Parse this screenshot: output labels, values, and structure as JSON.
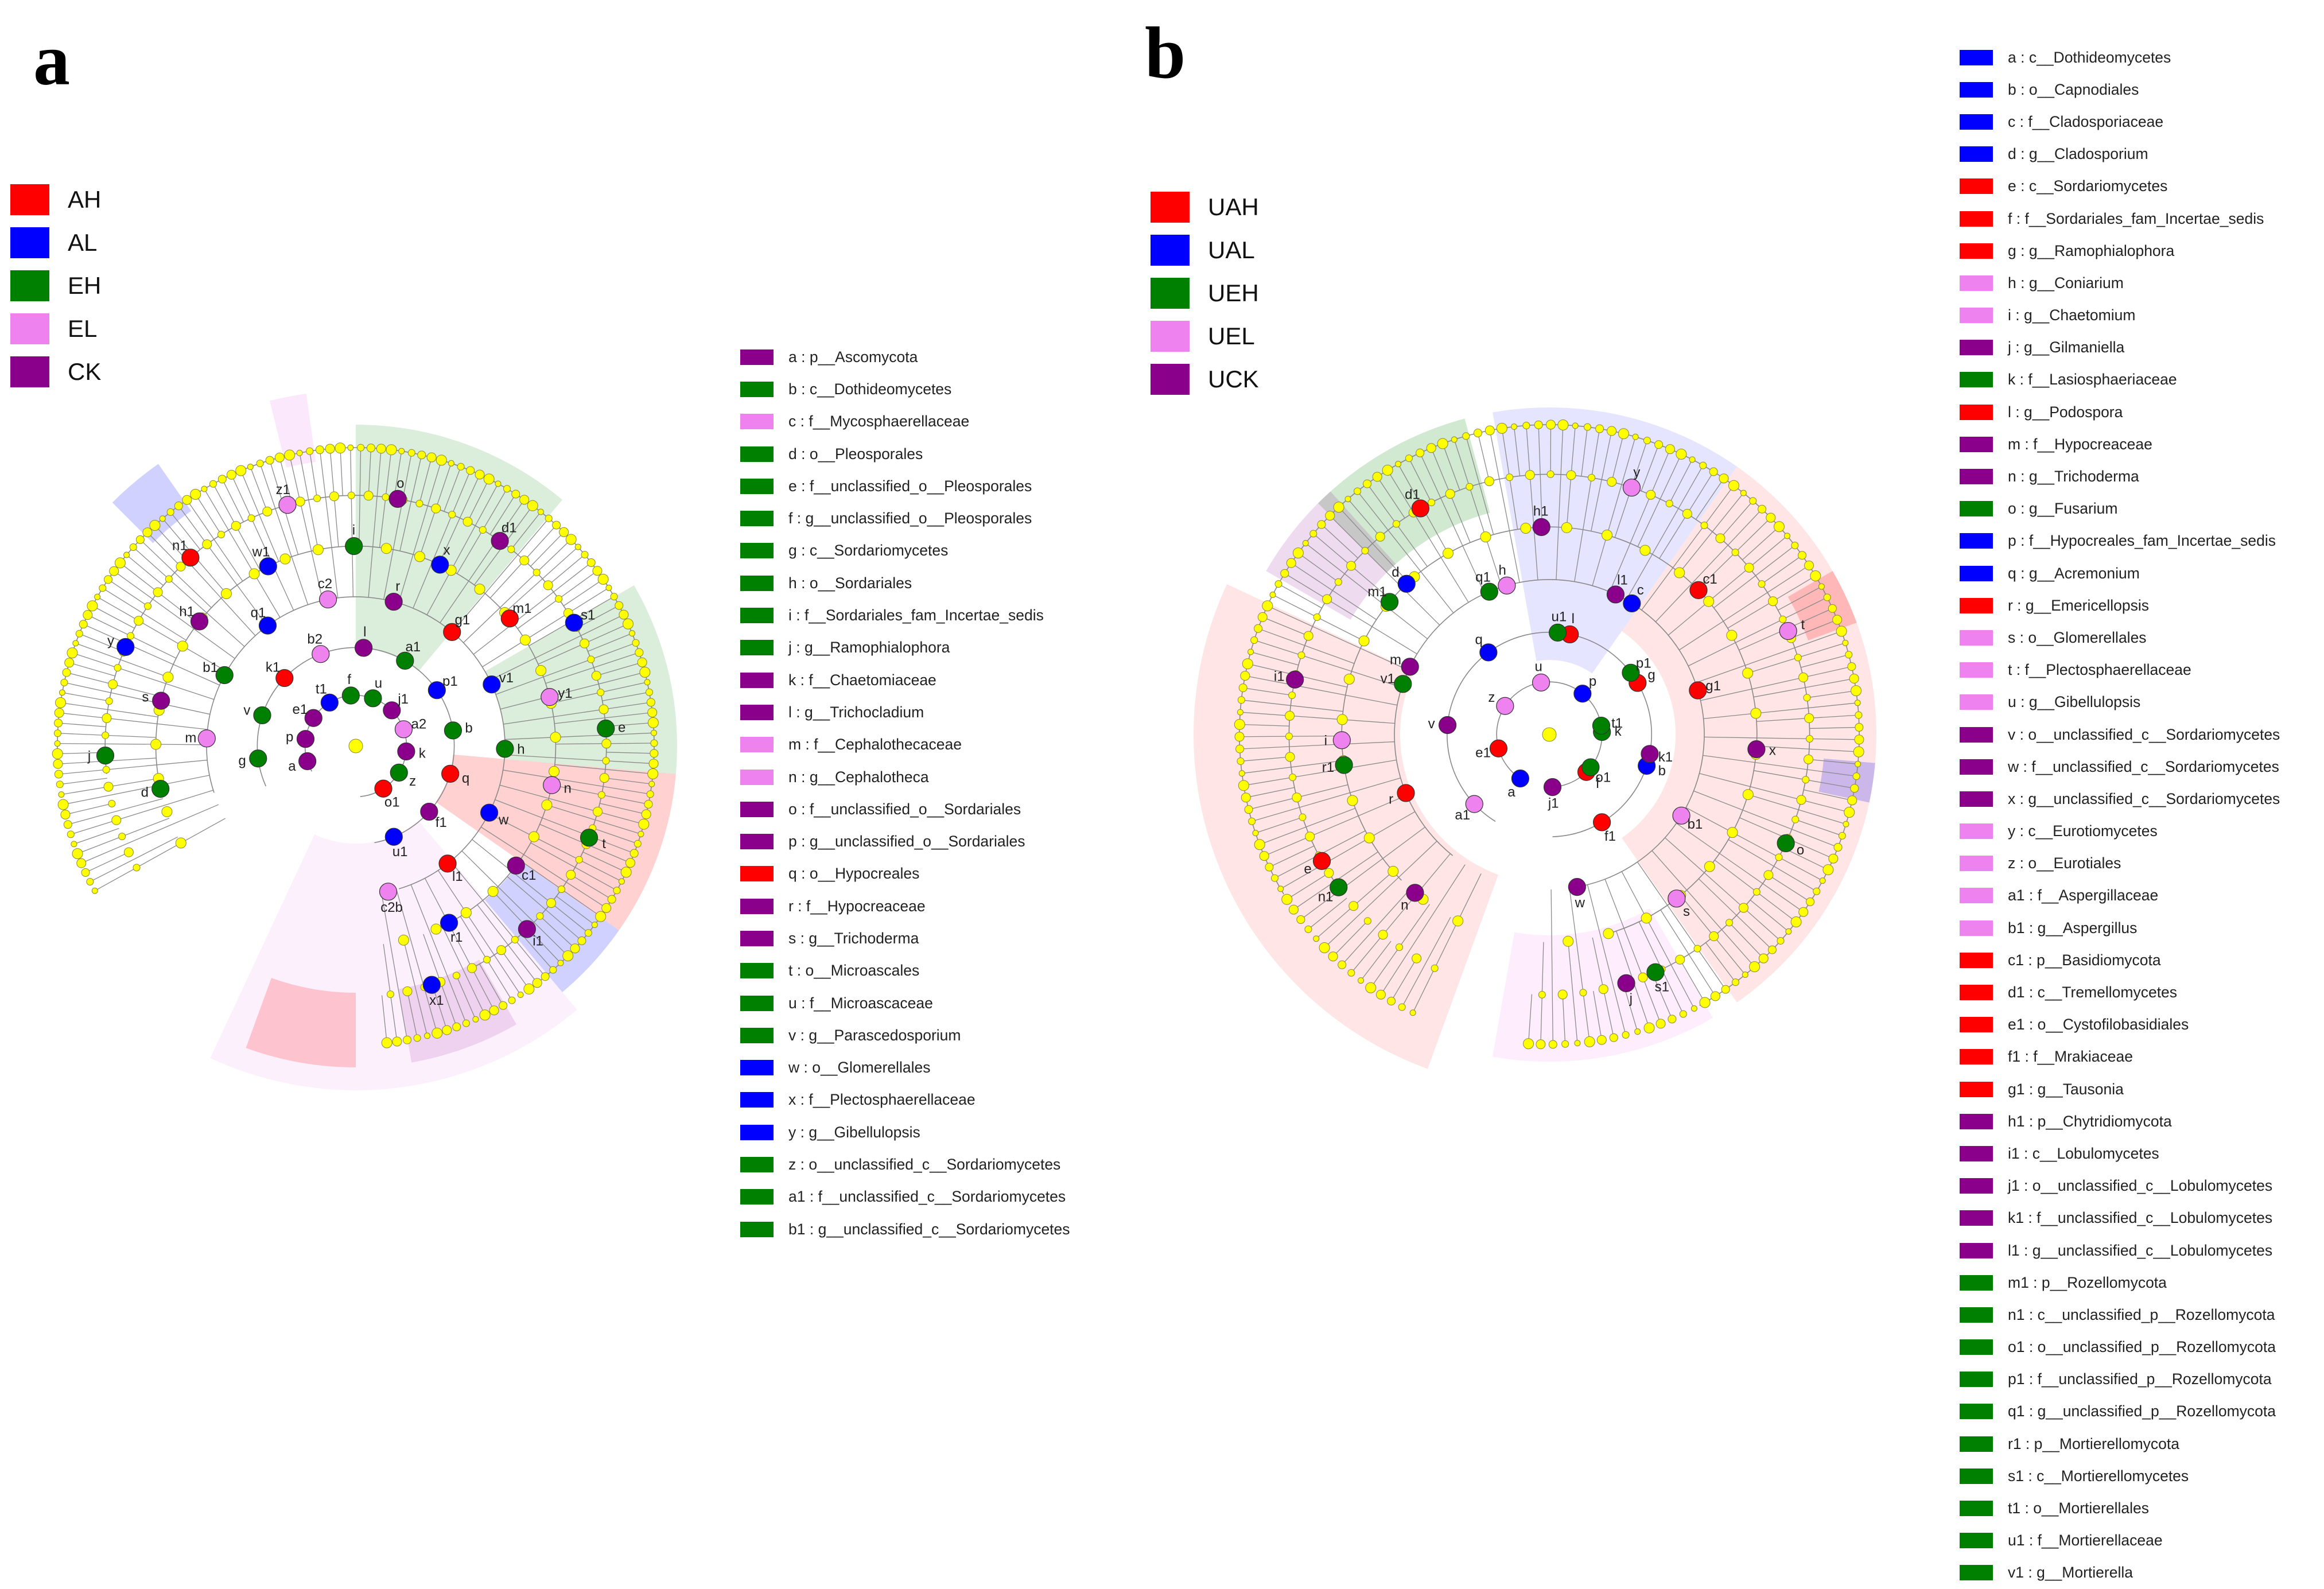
{
  "colors": {
    "red": "#ff0000",
    "blue": "#0000ff",
    "green": "#008000",
    "pink": "#ee82ee",
    "purple": "#8b008b",
    "yellow": "#ffff00"
  },
  "panel_a": {
    "label": "a",
    "groups": [
      {
        "name": "AH",
        "color": "#ff0000"
      },
      {
        "name": "AL",
        "color": "#0000ff"
      },
      {
        "name": "EH",
        "color": "#008000"
      },
      {
        "name": "EL",
        "color": "#ee82ee"
      },
      {
        "name": "CK",
        "color": "#8b008b"
      }
    ],
    "taxa": [
      {
        "text": "a : p__Ascomycota",
        "color": "#8b008b"
      },
      {
        "text": "b : c__Dothideomycetes",
        "color": "#008000"
      },
      {
        "text": "c : f__Mycosphaerellaceae",
        "color": "#ee82ee"
      },
      {
        "text": "d : o__Pleosporales",
        "color": "#008000"
      },
      {
        "text": "e : f__unclassified_o__Pleosporales",
        "color": "#008000"
      },
      {
        "text": "f : g__unclassified_o__Pleosporales",
        "color": "#008000"
      },
      {
        "text": "g : c__Sordariomycetes",
        "color": "#008000"
      },
      {
        "text": "h : o__Sordariales",
        "color": "#008000"
      },
      {
        "text": "i : f__Sordariales_fam_Incertae_sedis",
        "color": "#008000"
      },
      {
        "text": "j : g__Ramophialophora",
        "color": "#008000"
      },
      {
        "text": "k : f__Chaetomiaceae",
        "color": "#8b008b"
      },
      {
        "text": "l : g__Trichocladium",
        "color": "#8b008b"
      },
      {
        "text": "m : f__Cephalothecaceae",
        "color": "#ee82ee"
      },
      {
        "text": "n : g__Cephalotheca",
        "color": "#ee82ee"
      },
      {
        "text": "o : f__unclassified_o__Sordariales",
        "color": "#8b008b"
      },
      {
        "text": "p : g__unclassified_o__Sordariales",
        "color": "#8b008b"
      },
      {
        "text": "q : o__Hypocreales",
        "color": "#ff0000"
      },
      {
        "text": "r : f__Hypocreaceae",
        "color": "#8b008b"
      },
      {
        "text": "s : g__Trichoderma",
        "color": "#8b008b"
      },
      {
        "text": "t : o__Microascales",
        "color": "#008000"
      },
      {
        "text": "u : f__Microascaceae",
        "color": "#008000"
      },
      {
        "text": "v : g__Parascedosporium",
        "color": "#008000"
      },
      {
        "text": "w : o__Glomerellales",
        "color": "#0000ff"
      },
      {
        "text": "x : f__Plectosphaerellaceae",
        "color": "#0000ff"
      },
      {
        "text": "y : g__Gibellulopsis",
        "color": "#0000ff"
      },
      {
        "text": "z : o__unclassified_c__Sordariomycetes",
        "color": "#008000"
      },
      {
        "text": "a1 : f__unclassified_c__Sordariomycetes",
        "color": "#008000"
      },
      {
        "text": "b1 : g__unclassified_c__Sordariomycetes",
        "color": "#008000"
      }
    ],
    "nodes": [
      {
        "id": "a",
        "color": "#8b008b"
      },
      {
        "id": "b",
        "color": "#008000"
      },
      {
        "id": "c2",
        "color": "#ee82ee"
      },
      {
        "id": "d",
        "color": "#008000"
      },
      {
        "id": "e",
        "color": "#008000"
      },
      {
        "id": "f",
        "color": "#008000"
      },
      {
        "id": "g",
        "color": "#008000"
      },
      {
        "id": "h",
        "color": "#008000"
      },
      {
        "id": "i",
        "color": "#008000"
      },
      {
        "id": "j",
        "color": "#008000"
      },
      {
        "id": "k",
        "color": "#8b008b"
      },
      {
        "id": "l",
        "color": "#8b008b"
      },
      {
        "id": "m",
        "color": "#ee82ee"
      },
      {
        "id": "n",
        "color": "#ee82ee"
      },
      {
        "id": "o",
        "color": "#8b008b"
      },
      {
        "id": "p",
        "color": "#8b008b"
      },
      {
        "id": "q",
        "color": "#ff0000"
      },
      {
        "id": "r",
        "color": "#8b008b"
      },
      {
        "id": "s",
        "color": "#8b008b"
      },
      {
        "id": "t",
        "color": "#008000"
      },
      {
        "id": "u",
        "color": "#008000"
      },
      {
        "id": "v",
        "color": "#008000"
      },
      {
        "id": "w",
        "color": "#0000ff"
      },
      {
        "id": "x",
        "color": "#0000ff"
      },
      {
        "id": "y",
        "color": "#0000ff"
      },
      {
        "id": "z",
        "color": "#008000"
      },
      {
        "id": "a1",
        "color": "#008000"
      },
      {
        "id": "b1",
        "color": "#008000"
      },
      {
        "id": "c1",
        "color": "#8b008b"
      },
      {
        "id": "d1",
        "color": "#8b008b"
      },
      {
        "id": "e1",
        "color": "#8b008b"
      },
      {
        "id": "f1",
        "color": "#8b008b"
      },
      {
        "id": "g1",
        "color": "#ff0000"
      },
      {
        "id": "h1",
        "color": "#8b008b"
      },
      {
        "id": "i1",
        "color": "#8b008b"
      },
      {
        "id": "j1",
        "color": "#8b008b"
      },
      {
        "id": "k1",
        "color": "#ff0000"
      },
      {
        "id": "l1",
        "color": "#ff0000"
      },
      {
        "id": "m1",
        "color": "#ff0000"
      },
      {
        "id": "n1",
        "color": "#ff0000"
      },
      {
        "id": "o1",
        "color": "#ff0000"
      },
      {
        "id": "p1",
        "color": "#0000ff"
      },
      {
        "id": "q1",
        "color": "#0000ff"
      },
      {
        "id": "r1",
        "color": "#0000ff"
      },
      {
        "id": "s1",
        "color": "#0000ff"
      },
      {
        "id": "t1",
        "color": "#0000ff"
      },
      {
        "id": "u1",
        "color": "#0000ff"
      },
      {
        "id": "v1",
        "color": "#0000ff"
      },
      {
        "id": "w1",
        "color": "#0000ff"
      },
      {
        "id": "x1",
        "color": "#0000ff"
      },
      {
        "id": "a2",
        "color": "#ee82ee"
      },
      {
        "id": "b2",
        "color": "#ee82ee"
      },
      {
        "id": "c2b",
        "color": "#ee82ee"
      },
      {
        "id": "y1",
        "color": "#ee82ee"
      },
      {
        "id": "z1",
        "color": "#ee82ee"
      }
    ]
  },
  "panel_b": {
    "label": "b",
    "groups": [
      {
        "name": "UAH",
        "color": "#ff0000"
      },
      {
        "name": "UAL",
        "color": "#0000ff"
      },
      {
        "name": "UEH",
        "color": "#008000"
      },
      {
        "name": "UEL",
        "color": "#ee82ee"
      },
      {
        "name": "UCK",
        "color": "#8b008b"
      }
    ],
    "taxa": [
      {
        "text": "a : c__Dothideomycetes",
        "color": "#0000ff"
      },
      {
        "text": "b : o__Capnodiales",
        "color": "#0000ff"
      },
      {
        "text": "c : f__Cladosporiaceae",
        "color": "#0000ff"
      },
      {
        "text": "d : g__Cladosporium",
        "color": "#0000ff"
      },
      {
        "text": "e : c__Sordariomycetes",
        "color": "#ff0000"
      },
      {
        "text": "f : f__Sordariales_fam_Incertae_sedis",
        "color": "#ff0000"
      },
      {
        "text": "g : g__Ramophialophora",
        "color": "#ff0000"
      },
      {
        "text": "h : g__Coniarium",
        "color": "#ee82ee"
      },
      {
        "text": "i : g__Chaetomium",
        "color": "#ee82ee"
      },
      {
        "text": "j : g__Gilmaniella",
        "color": "#8b008b"
      },
      {
        "text": "k : f__Lasiosphaeriaceae",
        "color": "#008000"
      },
      {
        "text": "l : g__Podospora",
        "color": "#ff0000"
      },
      {
        "text": "m : f__Hypocreaceae",
        "color": "#8b008b"
      },
      {
        "text": "n : g__Trichoderma",
        "color": "#8b008b"
      },
      {
        "text": "o : g__Fusarium",
        "color": "#008000"
      },
      {
        "text": "p : f__Hypocreales_fam_Incertae_sedis",
        "color": "#0000ff"
      },
      {
        "text": "q : g__Acremonium",
        "color": "#0000ff"
      },
      {
        "text": "r : g__Emericellopsis",
        "color": "#ff0000"
      },
      {
        "text": "s : o__Glomerellales",
        "color": "#ee82ee"
      },
      {
        "text": "t : f__Plectosphaerellaceae",
        "color": "#ee82ee"
      },
      {
        "text": "u : g__Gibellulopsis",
        "color": "#ee82ee"
      },
      {
        "text": "v : o__unclassified_c__Sordariomycetes",
        "color": "#8b008b"
      },
      {
        "text": "w : f__unclassified_c__Sordariomycetes",
        "color": "#8b008b"
      },
      {
        "text": "x : g__unclassified_c__Sordariomycetes",
        "color": "#8b008b"
      },
      {
        "text": "y : c__Eurotiomycetes",
        "color": "#ee82ee"
      },
      {
        "text": "z : o__Eurotiales",
        "color": "#ee82ee"
      },
      {
        "text": "a1 : f__Aspergillaceae",
        "color": "#ee82ee"
      },
      {
        "text": "b1 : g__Aspergillus",
        "color": "#ee82ee"
      },
      {
        "text": "c1 : p__Basidiomycota",
        "color": "#ff0000"
      },
      {
        "text": "d1 : c__Tremellomycetes",
        "color": "#ff0000"
      },
      {
        "text": "e1 : o__Cystofilobasidiales",
        "color": "#ff0000"
      },
      {
        "text": "f1 : f__Mrakiaceae",
        "color": "#ff0000"
      },
      {
        "text": "g1 : g__Tausonia",
        "color": "#ff0000"
      },
      {
        "text": "h1 : p__Chytridiomycota",
        "color": "#8b008b"
      },
      {
        "text": "i1 : c__Lobulomycetes",
        "color": "#8b008b"
      },
      {
        "text": "j1 : o__unclassified_c__Lobulomycetes",
        "color": "#8b008b"
      },
      {
        "text": "k1 : f__unclassified_c__Lobulomycetes",
        "color": "#8b008b"
      },
      {
        "text": "l1 : g__unclassified_c__Lobulomycetes",
        "color": "#8b008b"
      },
      {
        "text": "m1 : p__Rozellomycota",
        "color": "#008000"
      },
      {
        "text": "n1 : c__unclassified_p__Rozellomycota",
        "color": "#008000"
      },
      {
        "text": "o1 : o__unclassified_p__Rozellomycota",
        "color": "#008000"
      },
      {
        "text": "p1 : f__unclassified_p__Rozellomycota",
        "color": "#008000"
      },
      {
        "text": "q1 : g__unclassified_p__Rozellomycota",
        "color": "#008000"
      },
      {
        "text": "r1 : p__Mortierellomycota",
        "color": "#008000"
      },
      {
        "text": "s1 : c__Mortierellomycetes",
        "color": "#008000"
      },
      {
        "text": "t1 : o__Mortierellales",
        "color": "#008000"
      },
      {
        "text": "u1 : f__Mortierellaceae",
        "color": "#008000"
      },
      {
        "text": "v1 : g__Mortierella",
        "color": "#008000"
      }
    ],
    "nodes": [
      {
        "id": "a",
        "color": "#0000ff"
      },
      {
        "id": "b",
        "color": "#0000ff"
      },
      {
        "id": "c",
        "color": "#0000ff"
      },
      {
        "id": "d",
        "color": "#0000ff"
      },
      {
        "id": "e",
        "color": "#ff0000"
      },
      {
        "id": "f",
        "color": "#ff0000"
      },
      {
        "id": "g",
        "color": "#ff0000"
      },
      {
        "id": "h",
        "color": "#ee82ee"
      },
      {
        "id": "i",
        "color": "#ee82ee"
      },
      {
        "id": "j",
        "color": "#8b008b"
      },
      {
        "id": "k",
        "color": "#008000"
      },
      {
        "id": "l",
        "color": "#ff0000"
      },
      {
        "id": "m",
        "color": "#8b008b"
      },
      {
        "id": "n",
        "color": "#8b008b"
      },
      {
        "id": "o",
        "color": "#008000"
      },
      {
        "id": "p",
        "color": "#0000ff"
      },
      {
        "id": "q",
        "color": "#0000ff"
      },
      {
        "id": "r",
        "color": "#ff0000"
      },
      {
        "id": "s",
        "color": "#ee82ee"
      },
      {
        "id": "t",
        "color": "#ee82ee"
      },
      {
        "id": "u",
        "color": "#ee82ee"
      },
      {
        "id": "v",
        "color": "#8b008b"
      },
      {
        "id": "w",
        "color": "#8b008b"
      },
      {
        "id": "x",
        "color": "#8b008b"
      },
      {
        "id": "y",
        "color": "#ee82ee"
      },
      {
        "id": "z",
        "color": "#ee82ee"
      },
      {
        "id": "a1",
        "color": "#ee82ee"
      },
      {
        "id": "b1",
        "color": "#ee82ee"
      },
      {
        "id": "c1",
        "color": "#ff0000"
      },
      {
        "id": "d1",
        "color": "#ff0000"
      },
      {
        "id": "e1",
        "color": "#ff0000"
      },
      {
        "id": "f1",
        "color": "#ff0000"
      },
      {
        "id": "g1",
        "color": "#ff0000"
      },
      {
        "id": "h1",
        "color": "#8b008b"
      },
      {
        "id": "i1",
        "color": "#8b008b"
      },
      {
        "id": "j1",
        "color": "#8b008b"
      },
      {
        "id": "k1",
        "color": "#8b008b"
      },
      {
        "id": "l1",
        "color": "#8b008b"
      },
      {
        "id": "m1",
        "color": "#008000"
      },
      {
        "id": "n1",
        "color": "#008000"
      },
      {
        "id": "o1",
        "color": "#008000"
      },
      {
        "id": "p1",
        "color": "#008000"
      },
      {
        "id": "q1",
        "color": "#008000"
      },
      {
        "id": "r1",
        "color": "#008000"
      },
      {
        "id": "s1",
        "color": "#008000"
      },
      {
        "id": "t1",
        "color": "#008000"
      },
      {
        "id": "u1",
        "color": "#008000"
      },
      {
        "id": "v1",
        "color": "#008000"
      }
    ]
  }
}
